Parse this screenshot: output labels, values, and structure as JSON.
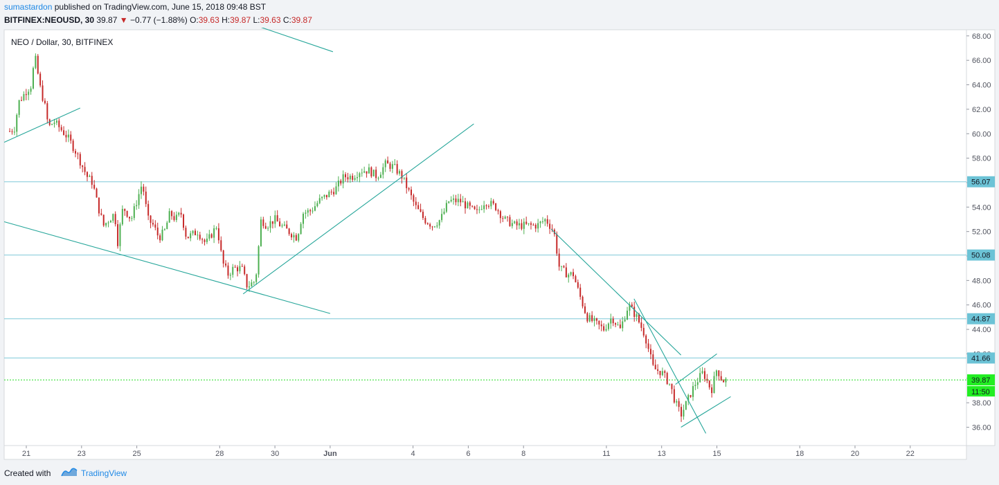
{
  "header": {
    "author": "sumastardon",
    "published": "published on TradingView.com, June 15, 2018 09:48 BST",
    "symbol": "BITFINEX:NEOUSD, 30",
    "last": "39.87",
    "arrow": "▼",
    "change": "−0.77 (−1.88%)",
    "o_label": "O:",
    "o_value": "39.63",
    "h_label": "H:",
    "h_value": "39.87",
    "l_label": "L:",
    "l_value": "39.63",
    "c_label": "C:",
    "c_value": "39.87"
  },
  "legend": "NEO / Dollar, 30, BITFINEX",
  "footer": {
    "created": "Created with",
    "brand": "TradingView"
  },
  "colors": {
    "up": "#26a69a",
    "up_wick": "#4caf50",
    "down": "#c62828",
    "trendline": "#26a69a",
    "hline": "#7ec8d8",
    "hline_label_bg": "#6cc3d6",
    "price_line": "#22dd22",
    "price_label_bg": "#22ee22",
    "brand": "#1e88e5"
  },
  "chart_data": {
    "type": "candlestick",
    "symbol": "NEO / Dollar, 30, BITFINEX",
    "ylim": [
      34.5,
      68.5
    ],
    "y_ticks": [
      "36.00",
      "38.00",
      "40.00",
      "42.00",
      "44.00",
      "46.00",
      "48.00",
      "50.00",
      "52.00",
      "54.00",
      "56.00",
      "58.00",
      "60.00",
      "62.00",
      "64.00",
      "66.00",
      "68.00"
    ],
    "x_ticks": [
      {
        "label": "21",
        "day": 0
      },
      {
        "label": "23",
        "day": 2
      },
      {
        "label": "25",
        "day": 4
      },
      {
        "label": "28",
        "day": 7
      },
      {
        "label": "30",
        "day": 9
      },
      {
        "label": "Jun",
        "day": 11
      },
      {
        "label": "4",
        "day": 14
      },
      {
        "label": "6",
        "day": 16
      },
      {
        "label": "8",
        "day": 18
      },
      {
        "label": "11",
        "day": 21
      },
      {
        "label": "13",
        "day": 23
      },
      {
        "label": "15",
        "day": 25
      },
      {
        "label": "18",
        "day": 28
      },
      {
        "label": "20",
        "day": 30
      },
      {
        "label": "22",
        "day": 32
      }
    ],
    "price_path": [
      [
        -0.6,
        60.2
      ],
      [
        -0.4,
        60.5
      ],
      [
        -0.3,
        62.5
      ],
      [
        0,
        63.5
      ],
      [
        0.2,
        64
      ],
      [
        0.3,
        66.5
      ],
      [
        0.5,
        63.8
      ],
      [
        0.7,
        62
      ],
      [
        0.8,
        60.5
      ],
      [
        1,
        61
      ],
      [
        1.2,
        60.5
      ],
      [
        1.5,
        59.7
      ],
      [
        1.8,
        58.5
      ],
      [
        2,
        57.5
      ],
      [
        2.2,
        56.5
      ],
      [
        2.4,
        56
      ],
      [
        2.6,
        54
      ],
      [
        2.8,
        52.5
      ],
      [
        3,
        53
      ],
      [
        3.2,
        53.5
      ],
      [
        3.3,
        51
      ],
      [
        3.5,
        54
      ],
      [
        3.8,
        53
      ],
      [
        4,
        54.5
      ],
      [
        4.2,
        56
      ],
      [
        4.4,
        53
      ],
      [
        4.6,
        52.5
      ],
      [
        4.8,
        51.5
      ],
      [
        5,
        52
      ],
      [
        5.2,
        53.5
      ],
      [
        5.4,
        53
      ],
      [
        5.6,
        53.5
      ],
      [
        5.8,
        51.5
      ],
      [
        6.2,
        52
      ],
      [
        6.5,
        51
      ],
      [
        6.9,
        52.5
      ],
      [
        7.1,
        49.5
      ],
      [
        7.3,
        48.5
      ],
      [
        7.5,
        49
      ],
      [
        7.8,
        49
      ],
      [
        8,
        47.5
      ],
      [
        8.3,
        48
      ],
      [
        8.4,
        50.5
      ],
      [
        8.5,
        53
      ],
      [
        8.7,
        52.5
      ],
      [
        9,
        53
      ],
      [
        9.2,
        52.5
      ],
      [
        9.5,
        52
      ],
      [
        9.8,
        51.5
      ],
      [
        10,
        53.5
      ],
      [
        10.3,
        53.7
      ],
      [
        10.6,
        54.5
      ],
      [
        10.9,
        55
      ],
      [
        11.2,
        55.5
      ],
      [
        11.5,
        56.5
      ],
      [
        11.8,
        56.5
      ],
      [
        12.1,
        57
      ],
      [
        12.4,
        57
      ],
      [
        12.7,
        56.5
      ],
      [
        13,
        57.5
      ],
      [
        13.3,
        57.3
      ],
      [
        13.6,
        56.5
      ],
      [
        13.9,
        55
      ],
      [
        14.1,
        54
      ],
      [
        14.4,
        53
      ],
      [
        14.7,
        52.5
      ],
      [
        15,
        53
      ],
      [
        15.3,
        54.5
      ],
      [
        15.7,
        54.5
      ],
      [
        16,
        54
      ],
      [
        16.3,
        53.5
      ],
      [
        16.6,
        54.5
      ],
      [
        17,
        54
      ],
      [
        17.3,
        53
      ],
      [
        17.7,
        52.5
      ],
      [
        18.1,
        52.5
      ],
      [
        18.5,
        52.5
      ],
      [
        18.8,
        53
      ],
      [
        19.1,
        52
      ],
      [
        19.3,
        49
      ],
      [
        19.6,
        48.5
      ],
      [
        19.8,
        48.5
      ],
      [
        20,
        47
      ],
      [
        20.3,
        45
      ],
      [
        20.6,
        44.5
      ],
      [
        20.9,
        44
      ],
      [
        21.2,
        45
      ],
      [
        21.5,
        44
      ],
      [
        21.8,
        46
      ],
      [
        22.1,
        45
      ],
      [
        22.4,
        43.5
      ],
      [
        22.7,
        40.8
      ],
      [
        23,
        40.5
      ],
      [
        23.3,
        39.5
      ],
      [
        23.5,
        38
      ],
      [
        23.7,
        37
      ],
      [
        23.9,
        38
      ],
      [
        24.2,
        39.5
      ],
      [
        24.5,
        40.5
      ],
      [
        24.8,
        39
      ],
      [
        25,
        40.8
      ],
      [
        25.2,
        39.8
      ],
      [
        25.4,
        39.87
      ]
    ],
    "horizontal_levels": [
      {
        "value": 56.07,
        "label": "56.07"
      },
      {
        "value": 50.08,
        "label": "50.08"
      },
      {
        "value": 44.87,
        "label": "44.87"
      },
      {
        "value": 41.66,
        "label": "41.66"
      }
    ],
    "current_price": {
      "value": 39.87,
      "label": "39.87",
      "countdown": "11:50"
    },
    "trendlines": [
      {
        "from": [
          -0.8,
          59.3
        ],
        "to": [
          1.95,
          62.1
        ]
      },
      {
        "from": [
          8.5,
          68.7
        ],
        "to": [
          11.1,
          66.7
        ]
      },
      {
        "from": [
          -0.8,
          52.8
        ],
        "to": [
          11.0,
          45.3
        ]
      },
      {
        "from": [
          7.85,
          46.9
        ],
        "to": [
          16.2,
          60.8
        ]
      },
      {
        "from": [
          19.0,
          52.2
        ],
        "to": [
          23.7,
          41.9
        ]
      },
      {
        "from": [
          22.0,
          46.5
        ],
        "to": [
          24.6,
          35.5
        ]
      },
      {
        "from": [
          23.5,
          39.5
        ],
        "to": [
          25.0,
          42.0
        ]
      },
      {
        "from": [
          23.7,
          36.0
        ],
        "to": [
          25.5,
          38.5
        ]
      }
    ]
  }
}
